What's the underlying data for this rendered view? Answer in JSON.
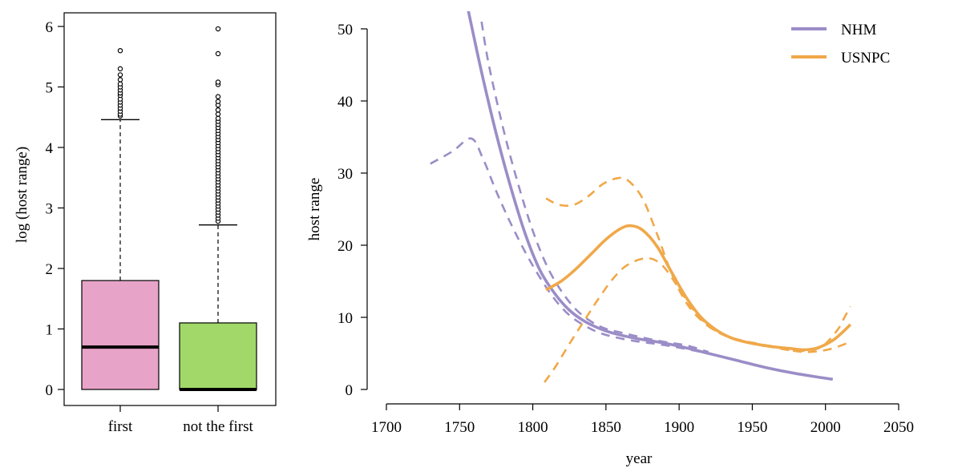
{
  "chart_data": [
    {
      "type": "box",
      "ylabel": "log (host range)",
      "ylim": [
        0,
        6
      ],
      "yticks": [
        0,
        1,
        2,
        3,
        4,
        5,
        6
      ],
      "categories": [
        "first",
        "not the first"
      ],
      "colors": [
        "#e8a3c8",
        "#a1d869"
      ],
      "boxes": [
        {
          "category": "first",
          "q1": 0,
          "median": 0.7,
          "q3": 1.8,
          "whisker_low": 0,
          "whisker_high": 4.46,
          "outliers": [
            4.52,
            4.55,
            4.6,
            4.65,
            4.7,
            4.75,
            4.8,
            4.86,
            4.9,
            4.95,
            5.0,
            5.05,
            5.12,
            5.2,
            5.3,
            5.6
          ]
        },
        {
          "category": "not the first",
          "q1": 0,
          "median": 0,
          "q3": 1.1,
          "whisker_low": 0,
          "whisker_high": 2.72,
          "outliers": [
            2.78,
            2.83,
            2.88,
            2.93,
            2.98,
            3.03,
            3.08,
            3.13,
            3.18,
            3.23,
            3.28,
            3.33,
            3.38,
            3.43,
            3.48,
            3.53,
            3.58,
            3.63,
            3.68,
            3.73,
            3.78,
            3.83,
            3.88,
            3.93,
            3.98,
            4.03,
            4.08,
            4.13,
            4.18,
            4.23,
            4.28,
            4.33,
            4.38,
            4.43,
            4.48,
            4.55,
            4.62,
            4.7,
            4.76,
            4.84,
            5.04,
            5.08,
            5.55,
            5.96
          ]
        }
      ]
    },
    {
      "type": "line",
      "xlabel": "year",
      "ylabel": "host range",
      "xlim": [
        1700,
        2050
      ],
      "ylim": [
        0,
        50
      ],
      "xticks": [
        1700,
        1750,
        1800,
        1850,
        1900,
        1950,
        2000,
        2050
      ],
      "yticks": [
        0,
        10,
        20,
        30,
        40,
        50
      ],
      "legend_position": "top-right",
      "series": [
        {
          "name": "NHM",
          "color": "#9b8dc7",
          "style": "solid",
          "points": [
            [
              1756,
              52.5
            ],
            [
              1765,
              44
            ],
            [
              1775,
              35.5
            ],
            [
              1785,
              28
            ],
            [
              1795,
              21.5
            ],
            [
              1805,
              16.5
            ],
            [
              1815,
              13.3
            ],
            [
              1825,
              11
            ],
            [
              1835,
              9.5
            ],
            [
              1845,
              8.5
            ],
            [
              1855,
              7.8
            ],
            [
              1870,
              7.1
            ],
            [
              1885,
              6.6
            ],
            [
              1900,
              6.0
            ],
            [
              1920,
              5.0
            ],
            [
              1940,
              4.0
            ],
            [
              1960,
              3.0
            ],
            [
              1980,
              2.2
            ],
            [
              2005,
              1.4
            ]
          ]
        },
        {
          "name": "",
          "color": "#9b8dc7",
          "style": "dashed",
          "points": [
            [
              1765,
              51
            ],
            [
              1770,
              45
            ],
            [
              1780,
              36
            ],
            [
              1790,
              28.5
            ],
            [
              1800,
              22
            ],
            [
              1810,
              17
            ],
            [
              1820,
              13.5
            ],
            [
              1830,
              11
            ],
            [
              1840,
              9.4
            ],
            [
              1850,
              8.4
            ],
            [
              1860,
              7.9
            ],
            [
              1875,
              7.2
            ],
            [
              1890,
              6.6
            ],
            [
              1905,
              6.1
            ],
            [
              1920,
              5.2
            ]
          ]
        },
        {
          "name": "",
          "color": "#9b8dc7",
          "style": "dashed",
          "points": [
            [
              1730,
              31.3
            ],
            [
              1745,
              33
            ],
            [
              1758,
              34.8
            ],
            [
              1766,
              32
            ],
            [
              1775,
              27.5
            ],
            [
              1785,
              23
            ],
            [
              1795,
              19
            ],
            [
              1805,
              15.5
            ],
            [
              1815,
              12.5
            ],
            [
              1825,
              10.3
            ],
            [
              1835,
              8.9
            ],
            [
              1845,
              7.9
            ],
            [
              1855,
              7.3
            ],
            [
              1870,
              6.7
            ],
            [
              1885,
              6.3
            ],
            [
              1900,
              5.8
            ],
            [
              1920,
              5.0
            ]
          ]
        },
        {
          "name": "USNPC",
          "color": "#f0a849",
          "style": "solid",
          "points": [
            [
              1809,
              13.8
            ],
            [
              1820,
              15.1
            ],
            [
              1830,
              16.8
            ],
            [
              1840,
              18.8
            ],
            [
              1850,
              20.8
            ],
            [
              1860,
              22.3
            ],
            [
              1867,
              22.7
            ],
            [
              1875,
              22.1
            ],
            [
              1885,
              19.8
            ],
            [
              1895,
              16.2
            ],
            [
              1905,
              12.7
            ],
            [
              1915,
              10.0
            ],
            [
              1925,
              8.3
            ],
            [
              1935,
              7.2
            ],
            [
              1945,
              6.6
            ],
            [
              1955,
              6.2
            ],
            [
              1965,
              5.9
            ],
            [
              1975,
              5.7
            ],
            [
              1985,
              5.5
            ],
            [
              1995,
              5.8
            ],
            [
              2005,
              6.8
            ],
            [
              2012,
              8.0
            ],
            [
              2017,
              9.0
            ]
          ]
        },
        {
          "name": "",
          "color": "#f0a849",
          "style": "dashed",
          "points": [
            [
              1809,
              26.5
            ],
            [
              1818,
              25.6
            ],
            [
              1828,
              25.6
            ],
            [
              1838,
              26.8
            ],
            [
              1848,
              28.5
            ],
            [
              1858,
              29.3
            ],
            [
              1865,
              29.0
            ],
            [
              1875,
              26.5
            ],
            [
              1885,
              21.5
            ],
            [
              1895,
              16.0
            ],
            [
              1905,
              12.0
            ],
            [
              1915,
              9.6
            ],
            [
              1925,
              8.1
            ],
            [
              1935,
              7.2
            ],
            [
              1945,
              6.7
            ],
            [
              1955,
              6.3
            ],
            [
              1965,
              5.9
            ],
            [
              1975,
              5.5
            ],
            [
              1985,
              5.2
            ],
            [
              1995,
              5.3
            ],
            [
              2005,
              5.7
            ],
            [
              2017,
              6.6
            ]
          ]
        },
        {
          "name": "",
          "color": "#f0a849",
          "style": "dashed",
          "points": [
            [
              1808,
              1.0
            ],
            [
              1815,
              3.0
            ],
            [
              1825,
              6.3
            ],
            [
              1835,
              9.5
            ],
            [
              1845,
              12.6
            ],
            [
              1855,
              15.4
            ],
            [
              1865,
              17.3
            ],
            [
              1878,
              18.2
            ],
            [
              1888,
              17.3
            ],
            [
              1898,
              14.6
            ],
            [
              1908,
              11.5
            ],
            [
              1918,
              9.2
            ],
            [
              1928,
              7.8
            ],
            [
              1938,
              7.0
            ],
            [
              1948,
              6.5
            ],
            [
              1958,
              6.1
            ],
            [
              1968,
              5.7
            ],
            [
              1978,
              5.4
            ],
            [
              1988,
              5.4
            ],
            [
              1998,
              6.0
            ],
            [
              2008,
              8.2
            ],
            [
              2013,
              10.0
            ],
            [
              2017,
              11.5
            ]
          ]
        }
      ]
    }
  ]
}
